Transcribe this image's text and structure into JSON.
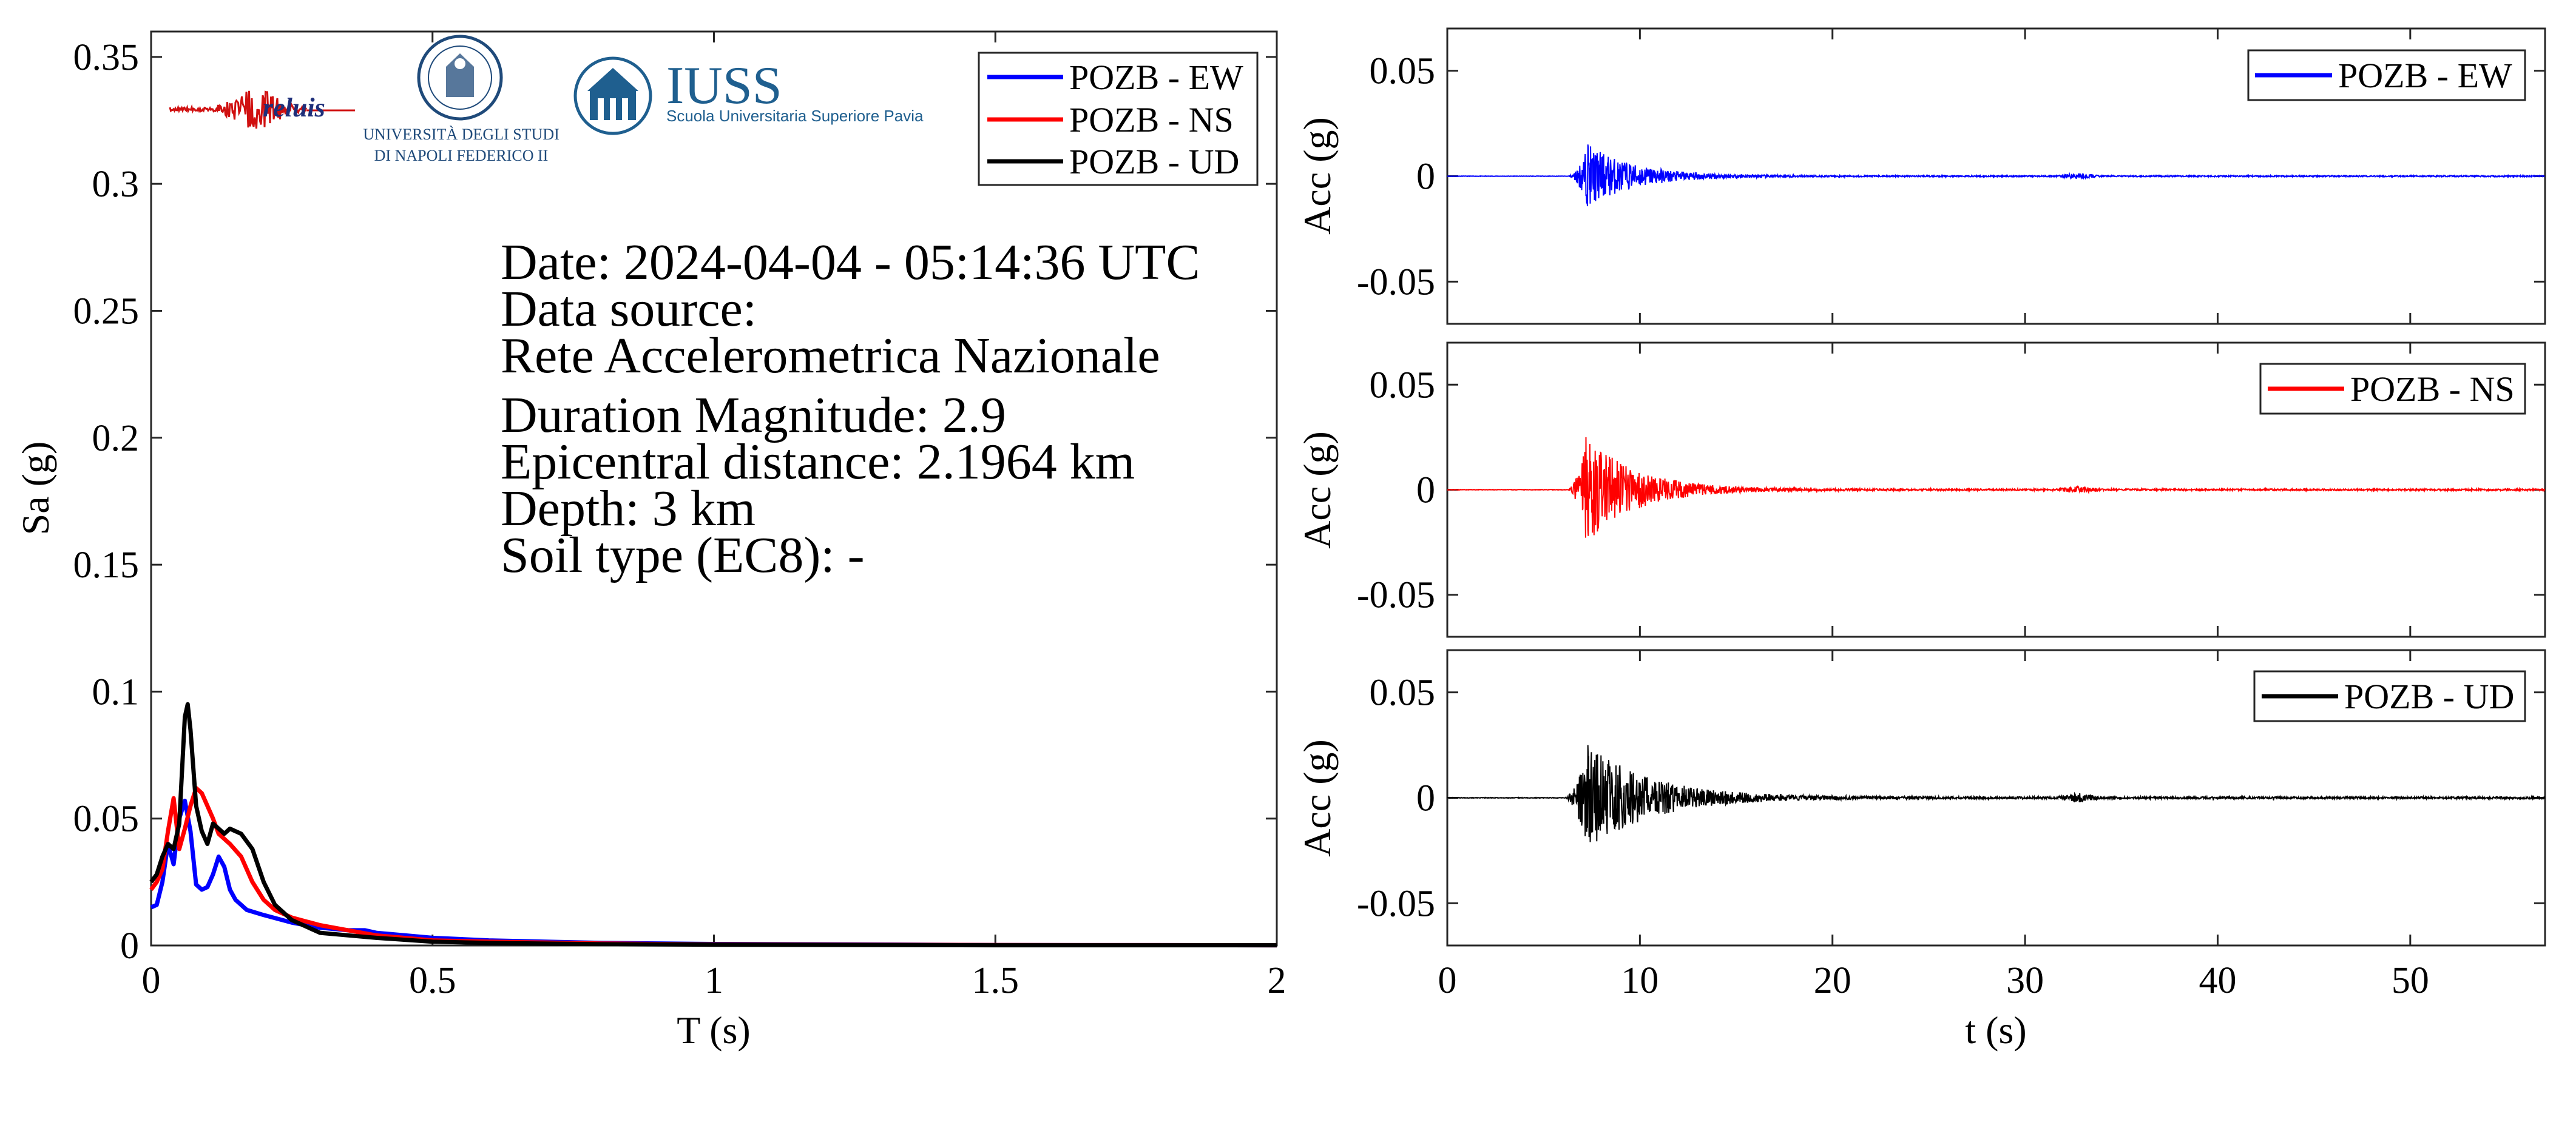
{
  "colors": {
    "ew": "#0000ff",
    "ns": "#ff0000",
    "ud": "#000000",
    "iuss_blue": "#1f5f8f"
  },
  "logos": {
    "reluis": "reluis",
    "unina_line1": "UNIVERSITÀ DEGLI STUDI",
    "unina_line2": "DI NAPOLI FEDERICO II",
    "iuss": "IUSS",
    "iuss_sub": "Scuola Universitaria Superiore Pavia"
  },
  "info": {
    "date": "Date: 2024-04-04 - 05:14:36 UTC",
    "source_label": "Data source:",
    "source": "Rete Accelerometrica Nazionale",
    "magnitude": "Duration Magnitude: 2.9",
    "distance": "Epicentral distance: 2.1964 km",
    "depth": "Depth: 3 km",
    "soil": "Soil type (EC8): -"
  },
  "chart_data": [
    {
      "type": "line",
      "xlabel": "T (s)",
      "ylabel": "Sa (g)",
      "xlim": [
        0,
        2
      ],
      "ylim": [
        0,
        0.36
      ],
      "xticks": [
        0,
        0.5,
        1,
        1.5,
        2
      ],
      "xticklabels": [
        "0",
        "0.5",
        "1",
        "1.5",
        "2"
      ],
      "yticks": [
        0,
        0.05,
        0.1,
        0.15,
        0.2,
        0.25,
        0.3,
        0.35
      ],
      "yticklabels": [
        "0",
        "0.05",
        "0.1",
        "0.15",
        "0.2",
        "0.25",
        "0.3",
        "0.35"
      ],
      "grid": false,
      "legend_position": "top-right",
      "series": [
        {
          "name": "POZB - EW",
          "color": "#0000ff",
          "x": [
            0,
            0.01,
            0.02,
            0.03,
            0.04,
            0.05,
            0.06,
            0.07,
            0.08,
            0.09,
            0.1,
            0.11,
            0.12,
            0.13,
            0.14,
            0.15,
            0.17,
            0.2,
            0.25,
            0.3,
            0.35,
            0.38,
            0.4,
            0.5,
            0.6,
            0.8,
            1.0,
            1.5,
            2.0
          ],
          "y": [
            0.015,
            0.016,
            0.025,
            0.04,
            0.032,
            0.05,
            0.057,
            0.045,
            0.024,
            0.022,
            0.023,
            0.028,
            0.035,
            0.031,
            0.022,
            0.018,
            0.014,
            0.012,
            0.009,
            0.007,
            0.006,
            0.006,
            0.005,
            0.003,
            0.002,
            0.001,
            0.0006,
            0.0002,
            0.0001
          ]
        },
        {
          "name": "POZB - NS",
          "color": "#ff0000",
          "x": [
            0,
            0.01,
            0.02,
            0.03,
            0.04,
            0.05,
            0.06,
            0.07,
            0.08,
            0.09,
            0.1,
            0.11,
            0.12,
            0.14,
            0.16,
            0.18,
            0.2,
            0.22,
            0.25,
            0.3,
            0.35,
            0.4,
            0.5,
            0.6,
            0.8,
            1.0,
            1.5,
            2.0
          ],
          "y": [
            0.022,
            0.025,
            0.03,
            0.045,
            0.058,
            0.038,
            0.046,
            0.055,
            0.062,
            0.06,
            0.055,
            0.05,
            0.044,
            0.04,
            0.035,
            0.025,
            0.018,
            0.014,
            0.011,
            0.008,
            0.006,
            0.004,
            0.002,
            0.0015,
            0.0008,
            0.0004,
            0.0002,
            0.0001
          ]
        },
        {
          "name": "POZB - UD",
          "color": "#000000",
          "x": [
            0,
            0.01,
            0.02,
            0.03,
            0.04,
            0.05,
            0.06,
            0.065,
            0.07,
            0.08,
            0.09,
            0.1,
            0.11,
            0.12,
            0.13,
            0.14,
            0.16,
            0.18,
            0.2,
            0.22,
            0.25,
            0.3,
            0.35,
            0.4,
            0.5,
            0.6,
            0.8,
            1.0,
            1.5,
            2.0
          ],
          "y": [
            0.025,
            0.028,
            0.035,
            0.04,
            0.038,
            0.048,
            0.09,
            0.095,
            0.085,
            0.055,
            0.045,
            0.04,
            0.048,
            0.046,
            0.044,
            0.046,
            0.044,
            0.038,
            0.025,
            0.016,
            0.01,
            0.005,
            0.004,
            0.003,
            0.0015,
            0.001,
            0.0005,
            0.0003,
            0.0001,
            0.0001
          ]
        }
      ]
    },
    {
      "type": "line",
      "xlabel": "",
      "ylabel": "Acc (g)",
      "xlim": [
        0,
        57
      ],
      "ylim": [
        -0.07,
        0.07
      ],
      "yticks": [
        -0.05,
        0,
        0.05
      ],
      "yticklabels": [
        "-0.05",
        "0",
        "0.05"
      ],
      "xticks": [
        0,
        10,
        20,
        30,
        40,
        50
      ],
      "show_xticklabels": false,
      "grid": false,
      "legend_position": "top-right",
      "series": [
        {
          "name": "POZB - EW",
          "color": "#0000ff",
          "envelope": {
            "t_start": 6.2,
            "t_peak": 7.3,
            "peak": 0.015,
            "peak_neg": -0.013,
            "decay": 2.4,
            "noise": 0.0003,
            "t_burst": 32.8,
            "burst_amp": 0.0012
          }
        }
      ]
    },
    {
      "type": "line",
      "xlabel": "",
      "ylabel": "Acc (g)",
      "xlim": [
        0,
        57
      ],
      "ylim": [
        -0.07,
        0.07
      ],
      "yticks": [
        -0.05,
        0,
        0.05
      ],
      "yticklabels": [
        "-0.05",
        "0",
        "0.05"
      ],
      "xticks": [
        0,
        10,
        20,
        30,
        40,
        50
      ],
      "show_xticklabels": false,
      "grid": false,
      "legend_position": "top-right",
      "series": [
        {
          "name": "POZB - NS",
          "color": "#ff0000",
          "envelope": {
            "t_start": 6.2,
            "t_peak": 7.2,
            "peak": 0.025,
            "peak_neg": -0.022,
            "decay": 2.6,
            "noise": 0.0004,
            "t_burst": 32.8,
            "burst_amp": 0.0015
          }
        }
      ]
    },
    {
      "type": "line",
      "xlabel": "t (s)",
      "ylabel": "Acc (g)",
      "xlim": [
        0,
        57
      ],
      "ylim": [
        -0.07,
        0.07
      ],
      "xticks": [
        0,
        10,
        20,
        30,
        40,
        50
      ],
      "xticklabels": [
        "0",
        "10",
        "20",
        "30",
        "40",
        "50"
      ],
      "yticks": [
        -0.05,
        0,
        0.05
      ],
      "yticklabels": [
        "-0.05",
        "0",
        "0.05"
      ],
      "grid": false,
      "legend_position": "top-right",
      "series": [
        {
          "name": "POZB - UD",
          "color": "#000000",
          "envelope": {
            "t_start": 6.0,
            "t_peak": 7.3,
            "peak": 0.025,
            "peak_neg": -0.021,
            "decay": 3.2,
            "noise": 0.0005,
            "t_burst": 32.8,
            "burst_amp": 0.0018
          }
        }
      ]
    }
  ]
}
